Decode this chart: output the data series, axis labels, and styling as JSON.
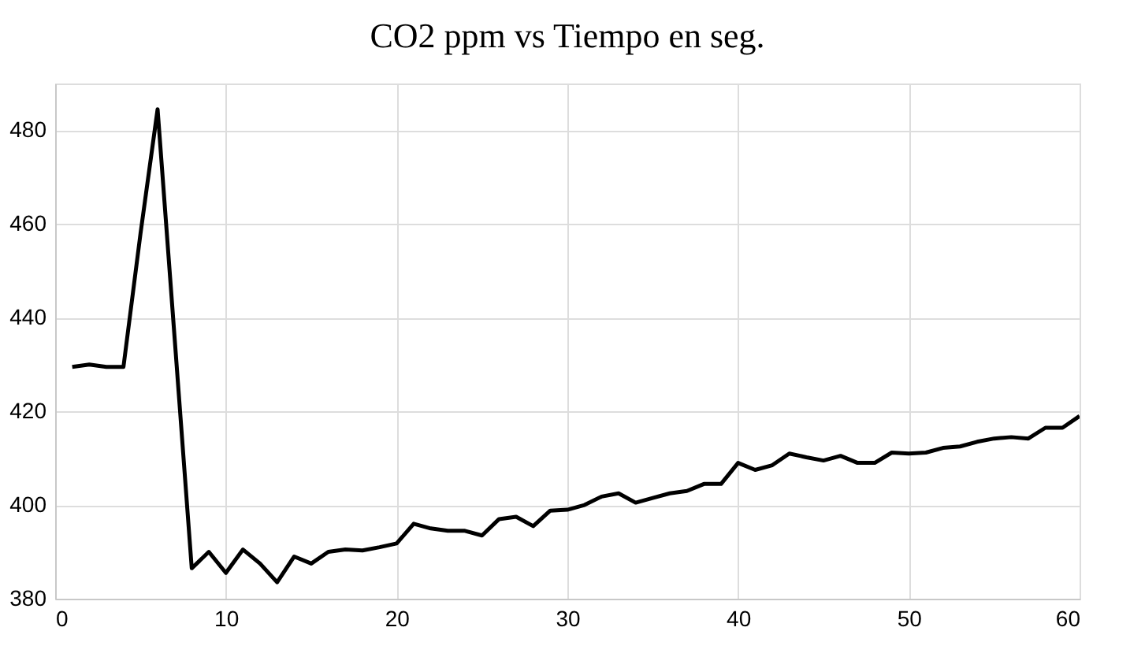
{
  "chart_data": {
    "type": "line",
    "title": "CO2 ppm vs Tiempo en seg.",
    "x": [
      1,
      2,
      3,
      4,
      5,
      6,
      7,
      8,
      9,
      10,
      11,
      12,
      13,
      14,
      15,
      16,
      17,
      18,
      19,
      20,
      21,
      22,
      23,
      24,
      25,
      26,
      27,
      28,
      29,
      30,
      31,
      32,
      33,
      34,
      35,
      36,
      37,
      38,
      39,
      40,
      41,
      42,
      43,
      44,
      45,
      46,
      47,
      48,
      49,
      50,
      51,
      52,
      53,
      54,
      55,
      56,
      57,
      58,
      59,
      60
    ],
    "series": [
      {
        "color": "#000000",
        "values": [
          429.5,
          430,
          429.5,
          429.5,
          458,
          484.5,
          435.5,
          386.5,
          390,
          385.5,
          390.5,
          387.5,
          383.5,
          389,
          387.5,
          390,
          390.5,
          390.3,
          391,
          391.8,
          396,
          395,
          394.5,
          394.5,
          393.5,
          397,
          397.5,
          395.5,
          398.8,
          399,
          400,
          401.8,
          402.5,
          400.5,
          401.5,
          402.5,
          403,
          404.5,
          404.5,
          409,
          407.5,
          408.5,
          411,
          410.2,
          409.5,
          410.5,
          409,
          409,
          411.2,
          411,
          411.2,
          412.2,
          412.5,
          413.5,
          414.2,
          414.5,
          414.2,
          416.5,
          416.5,
          419
        ]
      }
    ],
    "xlim": [
      0,
      60
    ],
    "xticks": [
      0,
      10,
      20,
      30,
      40,
      50,
      60
    ],
    "ylim": [
      380,
      490
    ],
    "yticks": [
      380,
      400,
      420,
      440,
      460,
      480
    ],
    "grid": true,
    "marker": "none",
    "line_style": "solid",
    "legend": false
  }
}
